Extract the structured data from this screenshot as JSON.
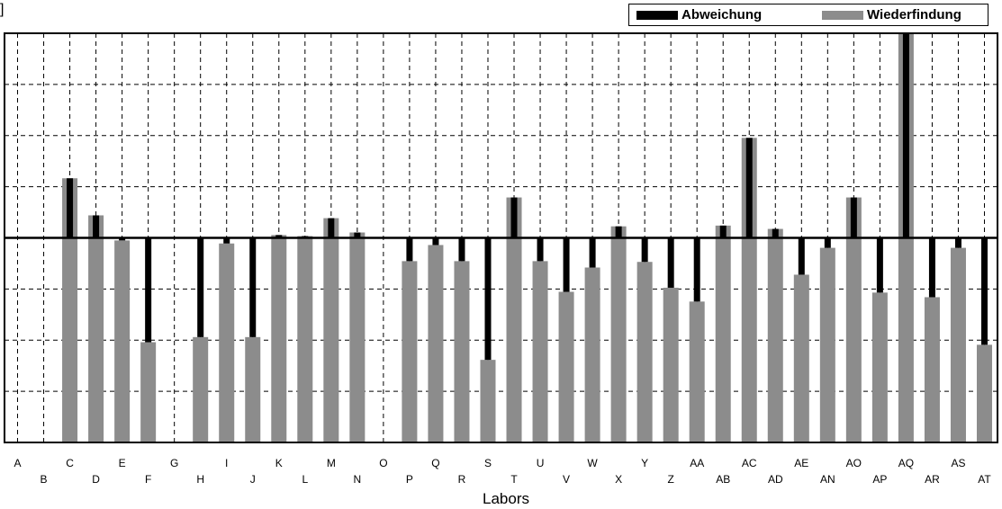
{
  "chart_data": {
    "type": "bar",
    "xlabel": "Labors",
    "ylabel": "",
    "corner_text": "]",
    "reference_line": 100,
    "ylim": [
      20,
      180
    ],
    "y_gridlines": [
      20,
      40,
      60,
      80,
      100,
      120,
      140,
      160,
      180
    ],
    "grid": true,
    "legend_position": "top-right",
    "categories": [
      "A",
      "B",
      "C",
      "D",
      "E",
      "F",
      "G",
      "H",
      "I",
      "J",
      "K",
      "L",
      "M",
      "N",
      "O",
      "P",
      "Q",
      "R",
      "S",
      "T",
      "U",
      "V",
      "W",
      "X",
      "Y",
      "Z",
      "AA",
      "AB",
      "AC",
      "AD",
      "AE",
      "AN",
      "AO",
      "AP",
      "AQ",
      "AR",
      "AS",
      "AT"
    ],
    "series": [
      {
        "name": "Wiederfindung",
        "color": "#8c8c8c",
        "values": [
          null,
          null,
          123.3,
          108.8,
          99,
          59.2,
          null,
          61.2,
          97.8,
          61.2,
          101.1,
          100.7,
          107.7,
          102.1,
          null,
          90.9,
          97.2,
          90.9,
          52.3,
          115.8,
          90.9,
          78.9,
          88.4,
          104.5,
          90.6,
          80.5,
          75.1,
          104.8,
          139.1,
          103.5,
          85.6,
          96.1,
          115.8,
          78.6,
          180,
          76.8,
          96.1,
          58.2
        ]
      },
      {
        "name": "Abweichung",
        "color": "#000000",
        "mark": "deviation from 100"
      }
    ]
  },
  "legend": {
    "items": [
      {
        "label": "Abweichung",
        "color": "#000000"
      },
      {
        "label": "Wiederfindung",
        "color": "#8c8c8c"
      }
    ]
  }
}
